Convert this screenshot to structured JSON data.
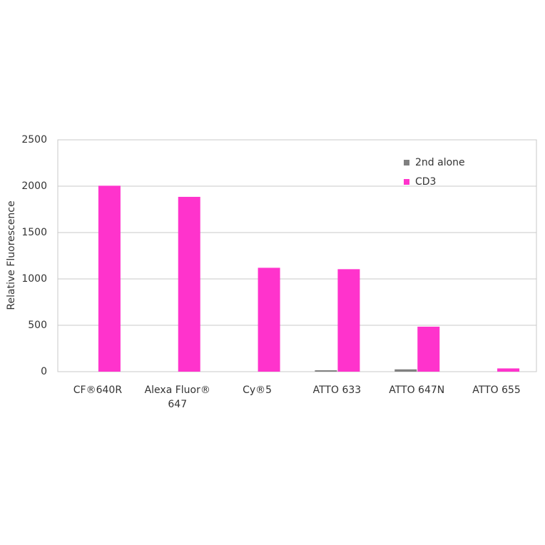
{
  "chart_data": {
    "type": "bar",
    "y_label": "Relative Fluorescence",
    "categories": [
      "CF®640R",
      "Alexa Fluor® 647",
      "Cy®5",
      "ATTO 633",
      "ATTO 647N",
      "ATTO 655"
    ],
    "series": [
      {
        "name": "2nd alone",
        "color": "#808080",
        "values": [
          0,
          0,
          0,
          15,
          25,
          0
        ]
      },
      {
        "name": "CD3",
        "color": "#ff33cc",
        "values": [
          2005,
          1885,
          1120,
          1105,
          485,
          35
        ]
      }
    ],
    "ylim": [
      0,
      2500
    ],
    "yticks": [
      0,
      500,
      1000,
      1500,
      2000,
      2500
    ],
    "grid": true,
    "legend": "top-right"
  }
}
